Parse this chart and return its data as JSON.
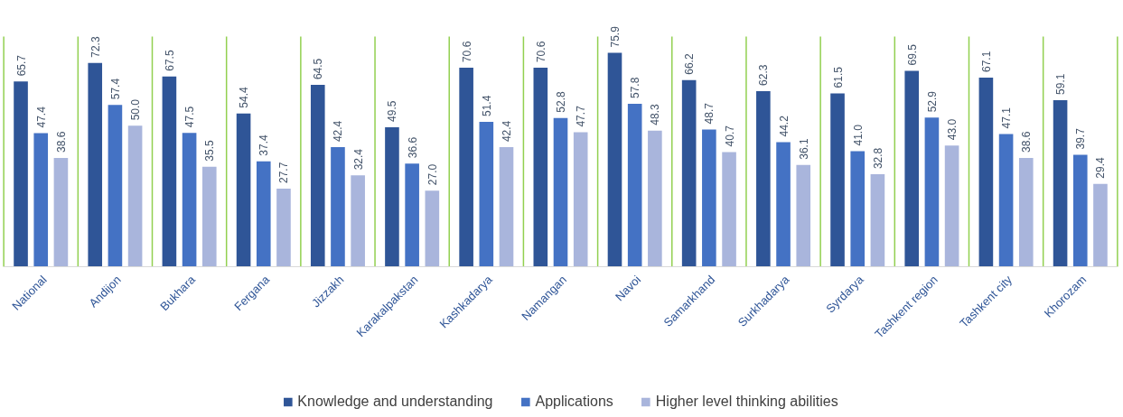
{
  "chart_data": {
    "type": "bar",
    "categories": [
      "National",
      "Andijon",
      "Bukhara",
      "Fergana",
      "Jizzakh",
      "Karakalpakstan",
      "Kashkadarya",
      "Namangan",
      "Navoi",
      "Samarkhand",
      "Surkhadarya",
      "Syrdarya",
      "Tashkent region",
      "Tashkent city",
      "Khorozam"
    ],
    "series": [
      {
        "name": "Knowledge and understanding",
        "color": "#2f5597",
        "values": [
          65.7,
          72.3,
          67.5,
          54.4,
          64.5,
          49.5,
          70.6,
          70.6,
          75.9,
          66.2,
          62.3,
          61.5,
          69.5,
          67.1,
          59.1
        ],
        "value_labels": [
          "65.7",
          "72.3",
          "67.5",
          "54.4",
          "64.5",
          "49.5",
          "70.6",
          "70.6",
          "75.9",
          "66.2",
          "62.3",
          "61.5",
          "69.5",
          "67.1",
          "59.1"
        ]
      },
      {
        "name": "Applications",
        "color": "#4472c4",
        "values": [
          47.4,
          57.4,
          47.5,
          37.4,
          42.4,
          36.6,
          51.4,
          52.8,
          57.8,
          48.7,
          44.2,
          41.0,
          52.9,
          47.1,
          39.7
        ],
        "value_labels": [
          "47.4",
          "57.4",
          "47.5",
          "37.4",
          "42.4",
          "36.6",
          "51.4",
          "52.8",
          "57.8",
          "48.7",
          "44.2",
          "41.0",
          "52.9",
          "47.1",
          "39.7"
        ]
      },
      {
        "name": "Higher level thinking abilities",
        "color": "#a9b5dc",
        "values": [
          38.6,
          50.0,
          35.5,
          27.7,
          32.4,
          27.0,
          42.4,
          47.7,
          48.3,
          40.7,
          36.1,
          32.8,
          43.0,
          38.6,
          29.4
        ],
        "value_labels": [
          "38.6",
          "50.0",
          "35.5",
          "27.7",
          "32.4",
          "27.0",
          "42.4",
          "47.7",
          "48.3",
          "40.7",
          "36.1",
          "32.8",
          "43.0",
          "38.6",
          "29.4"
        ]
      }
    ],
    "grid": "x",
    "legend": "bottom",
    "tick_labels": "x"
  }
}
